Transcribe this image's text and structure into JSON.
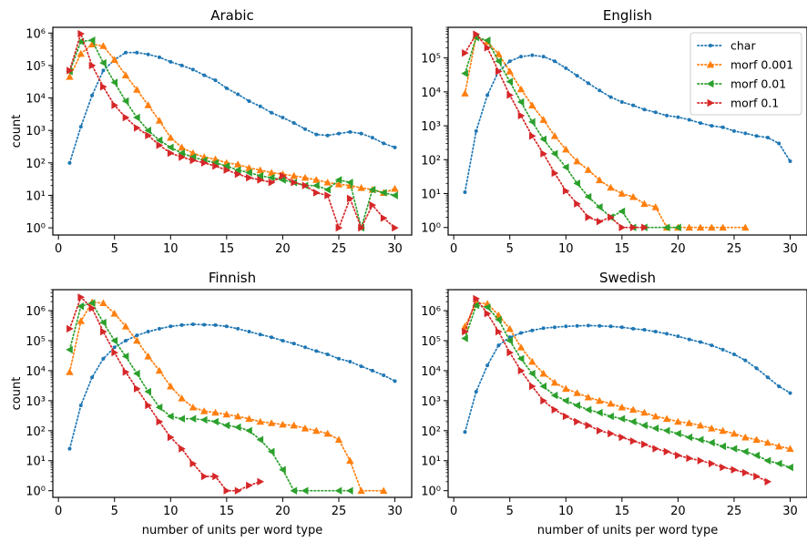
{
  "figure": {
    "xlabel": "number of units per word type",
    "ylabel": "count",
    "xticks": [
      0,
      5,
      10,
      15,
      20,
      25,
      30
    ],
    "yticks": [
      0,
      1,
      2,
      3,
      4,
      5,
      6
    ],
    "ytick_labels": [
      "10⁰",
      "10¹",
      "10²",
      "10³",
      "10⁴",
      "10⁵",
      "10⁶"
    ],
    "legend": {
      "placement": "top-right of English panel",
      "entries": [
        {
          "series": "char",
          "label": "char"
        },
        {
          "series": "morf_0.001",
          "label": "morf 0.001"
        },
        {
          "series": "morf_0.01",
          "label": "morf 0.01"
        },
        {
          "series": "morf_0.1",
          "label": "morf 0.1"
        }
      ]
    },
    "styles": {
      "char": {
        "color": "#1f77b4",
        "marker": "circle"
      },
      "morf_0.001": {
        "color": "#ff7f0e",
        "marker": "triangle-up"
      },
      "morf_0.01": {
        "color": "#2ca02c",
        "marker": "triangle-left"
      },
      "morf_0.1": {
        "color": "#d62728",
        "marker": "triangle-right"
      }
    }
  },
  "chart_data": [
    {
      "type": "line",
      "title": "Arabic",
      "yscale": "log",
      "xlim": [
        -0.5,
        31.5
      ],
      "ylim": [
        0.6,
        1500000
      ],
      "series": [
        {
          "key": "char",
          "name": "char",
          "x": [
            1,
            2,
            3,
            4,
            5,
            6,
            7,
            8,
            9,
            10,
            11,
            12,
            13,
            14,
            15,
            16,
            17,
            18,
            19,
            20,
            21,
            22,
            23,
            24,
            25,
            26,
            27,
            28,
            29,
            30
          ],
          "y": [
            100,
            1300,
            12000,
            70000,
            150000,
            250000,
            250000,
            220000,
            180000,
            130000,
            100000,
            75000,
            50000,
            35000,
            20000,
            13000,
            8000,
            5500,
            3500,
            2500,
            1700,
            1100,
            750,
            700,
            800,
            900,
            800,
            600,
            400,
            300
          ]
        },
        {
          "key": "morf_0.001",
          "name": "morf 0.001",
          "x": [
            1,
            2,
            3,
            4,
            5,
            6,
            7,
            8,
            9,
            10,
            11,
            12,
            13,
            14,
            15,
            16,
            17,
            18,
            19,
            20,
            21,
            22,
            23,
            24,
            25,
            26,
            27,
            28,
            29,
            30
          ],
          "y": [
            45000,
            230000,
            450000,
            400000,
            150000,
            50000,
            18000,
            6000,
            2000,
            600,
            300,
            200,
            150,
            130,
            100,
            90,
            70,
            60,
            50,
            45,
            40,
            35,
            30,
            25,
            22,
            20,
            17,
            15,
            12,
            16
          ]
        },
        {
          "key": "morf_0.01",
          "name": "morf 0.01",
          "x": [
            1,
            2,
            3,
            4,
            5,
            6,
            7,
            8,
            9,
            10,
            11,
            12,
            13,
            14,
            15,
            16,
            17,
            18,
            19,
            20,
            21,
            22,
            23,
            24,
            25,
            26,
            27,
            28,
            29,
            30
          ],
          "y": [
            65000,
            550000,
            600000,
            120000,
            30000,
            8000,
            2500,
            1000,
            500,
            300,
            200,
            150,
            120,
            100,
            80,
            60,
            50,
            40,
            35,
            30,
            25,
            20,
            20,
            15,
            30,
            25,
            1,
            15,
            12,
            10
          ]
        },
        {
          "key": "morf_0.1",
          "name": "morf 0.1",
          "x": [
            1,
            2,
            3,
            4,
            5,
            6,
            7,
            8,
            9,
            10,
            11,
            12,
            13,
            14,
            15,
            16,
            17,
            18,
            19,
            20,
            21,
            22,
            23,
            24,
            25,
            26,
            27,
            28,
            29,
            30
          ],
          "y": [
            70000,
            950000,
            100000,
            22000,
            6000,
            2500,
            1200,
            700,
            350,
            200,
            150,
            120,
            100,
            80,
            60,
            45,
            35,
            30,
            25,
            40,
            25,
            20,
            12,
            10,
            1,
            8,
            1,
            5,
            2,
            1
          ]
        }
      ]
    },
    {
      "type": "line",
      "title": "English",
      "yscale": "log",
      "xlim": [
        -0.5,
        31.5
      ],
      "ylim": [
        0.6,
        800000
      ],
      "series": [
        {
          "key": "char",
          "name": "char",
          "x": [
            1,
            2,
            3,
            4,
            5,
            6,
            7,
            8,
            9,
            10,
            11,
            12,
            13,
            14,
            15,
            16,
            17,
            18,
            19,
            20,
            21,
            22,
            23,
            24,
            25,
            26,
            27,
            28,
            29,
            30
          ],
          "y": [
            11,
            700,
            8000,
            40000,
            80000,
            110000,
            120000,
            110000,
            80000,
            50000,
            30000,
            18000,
            11000,
            7000,
            5000,
            4000,
            3000,
            2500,
            2000,
            1800,
            1500,
            1200,
            1000,
            900,
            700,
            600,
            500,
            450,
            300,
            90
          ]
        },
        {
          "key": "morf_0.001",
          "name": "morf 0.001",
          "x": [
            1,
            2,
            3,
            4,
            5,
            6,
            7,
            8,
            9,
            10,
            11,
            12,
            13,
            14,
            15,
            16,
            17,
            18,
            19,
            20,
            21,
            22,
            23,
            24,
            26
          ],
          "y": [
            9000,
            450000,
            300000,
            130000,
            40000,
            12000,
            4000,
            1500,
            500,
            200,
            90,
            50,
            25,
            15,
            10,
            8,
            5,
            4,
            1,
            1,
            1,
            1,
            1,
            1,
            1
          ]
        },
        {
          "key": "morf_0.01",
          "name": "morf 0.01",
          "x": [
            1,
            2,
            3,
            4,
            5,
            6,
            7,
            8,
            9,
            10,
            11,
            12,
            13,
            14,
            15,
            16,
            17,
            19,
            20
          ],
          "y": [
            35000,
            400000,
            330000,
            80000,
            20000,
            5000,
            1300,
            400,
            150,
            60,
            20,
            8,
            4,
            2,
            3,
            1,
            1,
            1,
            1
          ]
        },
        {
          "key": "morf_0.1",
          "name": "morf 0.1",
          "x": [
            1,
            2,
            3,
            4,
            5,
            6,
            7,
            8,
            9,
            10,
            11,
            12,
            13,
            14,
            15,
            16,
            17
          ],
          "y": [
            140000,
            500000,
            200000,
            40000,
            8000,
            2000,
            500,
            150,
            40,
            12,
            5,
            2,
            1.5,
            2,
            1,
            1,
            1
          ]
        }
      ]
    },
    {
      "type": "line",
      "title": "Finnish",
      "yscale": "log",
      "xlim": [
        -0.5,
        31.5
      ],
      "ylim": [
        0.6,
        5000000
      ],
      "series": [
        {
          "key": "char",
          "name": "char",
          "x": [
            1,
            2,
            3,
            4,
            5,
            6,
            7,
            8,
            9,
            10,
            11,
            12,
            13,
            14,
            15,
            16,
            17,
            18,
            19,
            20,
            21,
            22,
            23,
            24,
            25,
            26,
            27,
            28,
            29,
            30
          ],
          "y": [
            25,
            700,
            6000,
            25000,
            60000,
            100000,
            150000,
            200000,
            250000,
            300000,
            330000,
            350000,
            340000,
            330000,
            300000,
            250000,
            200000,
            160000,
            130000,
            100000,
            80000,
            60000,
            45000,
            35000,
            25000,
            20000,
            14000,
            10000,
            7000,
            4500
          ]
        },
        {
          "key": "morf_0.001",
          "name": "morf 0.001",
          "x": [
            1,
            2,
            3,
            4,
            5,
            6,
            7,
            8,
            9,
            10,
            11,
            12,
            13,
            14,
            15,
            16,
            17,
            18,
            19,
            20,
            21,
            22,
            23,
            24,
            25,
            26,
            27,
            29
          ],
          "y": [
            9000,
            450000,
            1900000,
            1800000,
            800000,
            300000,
            100000,
            30000,
            10000,
            3000,
            1200,
            600,
            450,
            400,
            350,
            300,
            250,
            200,
            180,
            160,
            150,
            120,
            100,
            80,
            50,
            10,
            1,
            1
          ]
        },
        {
          "key": "morf_0.01",
          "name": "morf 0.01",
          "x": [
            1,
            2,
            3,
            4,
            5,
            6,
            7,
            8,
            9,
            10,
            11,
            12,
            13,
            14,
            15,
            16,
            17,
            18,
            19,
            20,
            21,
            22,
            25,
            26
          ],
          "y": [
            50000,
            1400000,
            1800000,
            400000,
            100000,
            30000,
            8000,
            2000,
            600,
            300,
            250,
            250,
            230,
            200,
            150,
            130,
            100,
            50,
            20,
            5,
            1,
            1,
            1,
            1
          ]
        },
        {
          "key": "morf_0.1",
          "name": "morf 0.1",
          "x": [
            1,
            2,
            3,
            4,
            5,
            6,
            7,
            8,
            9,
            10,
            11,
            12,
            13,
            14,
            15,
            16,
            17,
            18
          ],
          "y": [
            250000,
            2800000,
            1200000,
            200000,
            40000,
            9000,
            2500,
            700,
            200,
            60,
            25,
            8,
            3,
            3,
            1,
            1,
            1.5,
            2
          ]
        }
      ]
    },
    {
      "type": "line",
      "title": "Swedish",
      "yscale": "log",
      "xlim": [
        -0.5,
        31.5
      ],
      "ylim": [
        0.6,
        5000000
      ],
      "series": [
        {
          "key": "char",
          "name": "char",
          "x": [
            1,
            2,
            3,
            4,
            5,
            6,
            7,
            8,
            9,
            10,
            11,
            12,
            13,
            14,
            15,
            16,
            17,
            18,
            19,
            20,
            21,
            22,
            23,
            24,
            25,
            26,
            27,
            28,
            29,
            30
          ],
          "y": [
            90,
            2000,
            15000,
            70000,
            130000,
            180000,
            220000,
            260000,
            280000,
            300000,
            310000,
            320000,
            310000,
            300000,
            280000,
            250000,
            230000,
            200000,
            170000,
            140000,
            110000,
            90000,
            70000,
            50000,
            35000,
            22000,
            12000,
            6000,
            3000,
            1800
          ]
        },
        {
          "key": "morf_0.001",
          "name": "morf 0.001",
          "x": [
            1,
            2,
            3,
            4,
            5,
            6,
            7,
            8,
            9,
            10,
            11,
            12,
            13,
            14,
            15,
            16,
            17,
            18,
            19,
            20,
            21,
            22,
            23,
            24,
            25,
            26,
            27,
            28,
            29,
            30
          ],
          "y": [
            300000,
            1800000,
            1700000,
            700000,
            250000,
            60000,
            20000,
            8000,
            4000,
            2500,
            1800,
            1300,
            1000,
            800,
            600,
            500,
            400,
            300,
            250,
            200,
            180,
            150,
            120,
            100,
            80,
            60,
            50,
            40,
            30,
            25
          ]
        },
        {
          "key": "morf_0.01",
          "name": "morf 0.01",
          "x": [
            1,
            2,
            3,
            4,
            5,
            6,
            7,
            8,
            9,
            10,
            11,
            12,
            13,
            14,
            15,
            16,
            17,
            18,
            19,
            20,
            21,
            22,
            23,
            24,
            25,
            26,
            27,
            28,
            29,
            30
          ],
          "y": [
            120000,
            1500000,
            1300000,
            500000,
            100000,
            25000,
            8000,
            3000,
            1500,
            1000,
            700,
            500,
            400,
            300,
            250,
            200,
            150,
            120,
            100,
            80,
            60,
            50,
            40,
            30,
            25,
            20,
            15,
            10,
            8,
            6
          ]
        },
        {
          "key": "morf_0.1",
          "name": "morf 0.1",
          "x": [
            1,
            2,
            3,
            4,
            5,
            6,
            7,
            8,
            9,
            10,
            11,
            12,
            13,
            14,
            15,
            16,
            17,
            18,
            19,
            20,
            21,
            22,
            23,
            24,
            25,
            26,
            27,
            28
          ],
          "y": [
            200000,
            2500000,
            800000,
            200000,
            40000,
            10000,
            3000,
            1000,
            500,
            300,
            200,
            150,
            100,
            80,
            60,
            45,
            35,
            25,
            20,
            15,
            12,
            10,
            8,
            6,
            5,
            4,
            3,
            2
          ]
        }
      ]
    }
  ]
}
